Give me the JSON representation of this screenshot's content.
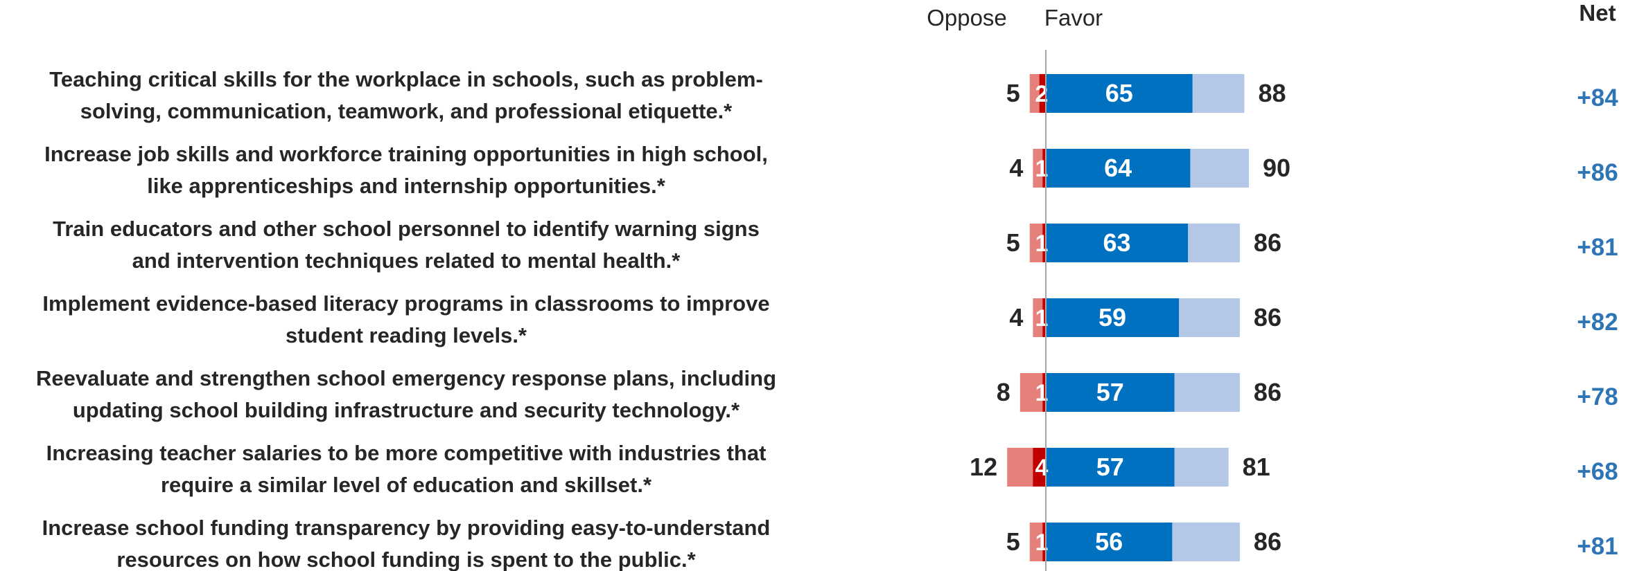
{
  "chart_data": {
    "type": "bar",
    "subtype": "diverging-stacked",
    "headers": {
      "oppose": "Oppose",
      "favor": "Favor",
      "net": "Net"
    },
    "colors": {
      "oppose_strong": "#C00000",
      "oppose_total": "#E6807A",
      "favor_strong": "#0070C0",
      "favor_total": "#B4C7E7",
      "net_text": "#2E75B6",
      "text": "#262626"
    },
    "categories": [
      [
        "Teaching critical skills for the workplace in schools, such as problem-",
        "solving, communication, teamwork, and professional etiquette.*"
      ],
      [
        "Increase job skills and workforce training opportunities in high school,",
        "like apprenticeships and internship opportunities.*"
      ],
      [
        "Train educators and other school personnel to identify warning signs",
        "and intervention techniques related to mental health.*"
      ],
      [
        "Implement evidence-based literacy programs in classrooms to improve",
        "student reading levels.*"
      ],
      [
        "Reevaluate and strengthen school emergency response plans, including",
        "updating school building infrastructure and security technology.*"
      ],
      [
        "Increasing teacher salaries to be more competitive with industries that",
        "require a similar level of education and skillset.*"
      ],
      [
        "Increase school funding transparency by providing easy-to-understand",
        "resources on how school funding is spent to the public.*"
      ]
    ],
    "series": [
      {
        "key": "oppose_total",
        "values": [
          5,
          4,
          5,
          4,
          8,
          12,
          5
        ]
      },
      {
        "key": "oppose_strong",
        "values": [
          2,
          1,
          1,
          1,
          1,
          4,
          1
        ]
      },
      {
        "key": "favor_strong",
        "values": [
          65,
          64,
          63,
          59,
          57,
          57,
          56
        ]
      },
      {
        "key": "favor_total",
        "values": [
          88,
          90,
          86,
          86,
          86,
          81,
          86
        ]
      }
    ],
    "net": [
      "+84",
      "+86",
      "+81",
      "+82",
      "+78",
      "+68",
      "+81"
    ]
  }
}
